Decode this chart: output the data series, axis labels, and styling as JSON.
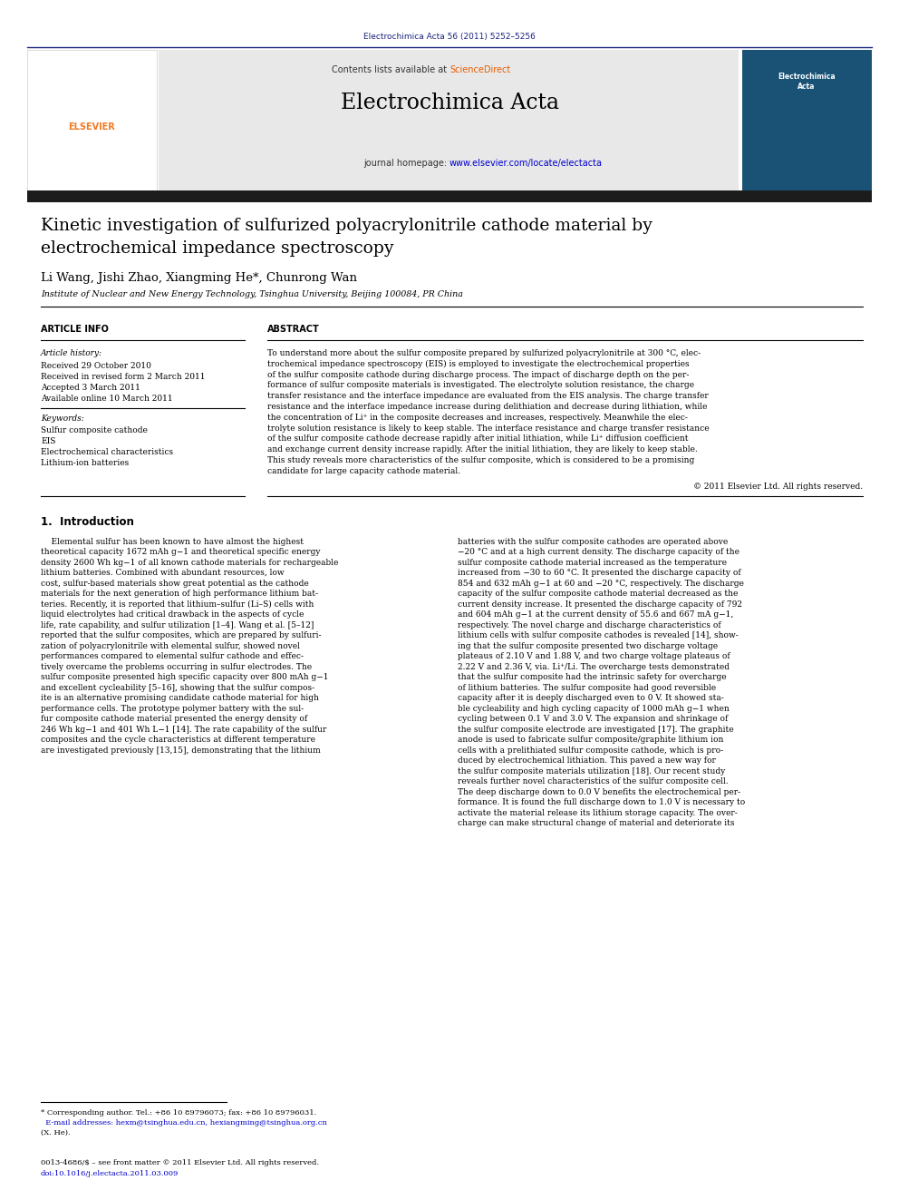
{
  "page_width": 9.92,
  "page_height": 13.23,
  "bg": "#ffffff",
  "top_ref": "Electrochimica Acta 56 (2011) 5252–5256",
  "journal_name": "Electrochimica Acta",
  "contents_prefix": "Contents lists available at ",
  "sciencedirect": "ScienceDirect",
  "homepage_prefix": "journal homepage: ",
  "homepage_url": "www.elsevier.com/locate/electacta",
  "title_line1": "Kinetic investigation of sulfurized polyacrylonitrile cathode material by",
  "title_line2": "electrochemical impedance spectroscopy",
  "authors": "Li Wang, Jishi Zhao, Xiangming He*, Chunrong Wan",
  "affiliation": "Institute of Nuclear and New Energy Technology, Tsinghua University, Beijing 100084, PR China",
  "art_info_hdr": "ARTICLE INFO",
  "abstract_hdr": "ABSTRACT",
  "hist_label": "Article history:",
  "hist_lines": [
    "Received 29 October 2010",
    "Received in revised form 2 March 2011",
    "Accepted 3 March 2011",
    "Available online 10 March 2011"
  ],
  "kw_label": "Keywords:",
  "kw_lines": [
    "Sulfur composite cathode",
    "EIS",
    "Electrochemical characteristics",
    "Lithium-ion batteries"
  ],
  "abstract_lines": [
    "To understand more about the sulfur composite prepared by sulfurized polyacrylonitrile at 300 °C, elec-",
    "trochemical impedance spectroscopy (EIS) is employed to investigate the electrochemical properties",
    "of the sulfur composite cathode during discharge process. The impact of discharge depth on the per-",
    "formance of sulfur composite materials is investigated. The electrolyte solution resistance, the charge",
    "transfer resistance and the interface impedance are evaluated from the EIS analysis. The charge transfer",
    "resistance and the interface impedance increase during delithiation and decrease during lithiation, while",
    "the concentration of Li⁺ in the composite decreases and increases, respectively. Meanwhile the elec-",
    "trolyte solution resistance is likely to keep stable. The interface resistance and charge transfer resistance",
    "of the sulfur composite cathode decrease rapidly after initial lithiation, while Li⁺ diffusion coefficient",
    "and exchange current density increase rapidly. After the initial lithiation, they are likely to keep stable.",
    "This study reveals more characteristics of the sulfur composite, which is considered to be a promising",
    "candidate for large capacity cathode material."
  ],
  "copyright": "© 2011 Elsevier Ltd. All rights reserved.",
  "sec1_hdr": "1.  Introduction",
  "intro_left_lines": [
    "    Elemental sulfur has been known to have almost the highest",
    "theoretical capacity 1672 mAh g−1 and theoretical specific energy",
    "density 2600 Wh kg−1 of all known cathode materials for rechargeable",
    "lithium batteries. Combined with abundant resources, low",
    "cost, sulfur-based materials show great potential as the cathode",
    "materials for the next generation of high performance lithium bat-",
    "teries. Recently, it is reported that lithium–sulfur (Li–S) cells with",
    "liquid electrolytes had critical drawback in the aspects of cycle",
    "life, rate capability, and sulfur utilization [1–4]. Wang et al. [5–12]",
    "reported that the sulfur composites, which are prepared by sulfuri-",
    "zation of polyacrylonitrile with elemental sulfur, showed novel",
    "performances compared to elemental sulfur cathode and effec-",
    "tively overcame the problems occurring in sulfur electrodes. The",
    "sulfur composite presented high specific capacity over 800 mAh g−1",
    "and excellent cycleability [5–16], showing that the sulfur compos-",
    "ite is an alternative promising candidate cathode material for high",
    "performance cells. The prototype polymer battery with the sul-",
    "fur composite cathode material presented the energy density of",
    "246 Wh kg−1 and 401 Wh L−1 [14]. The rate capability of the sulfur",
    "composites and the cycle characteristics at different temperature",
    "are investigated previously [13,15], demonstrating that the lithium"
  ],
  "intro_right_lines": [
    "batteries with the sulfur composite cathodes are operated above",
    "−20 °C and at a high current density. The discharge capacity of the",
    "sulfur composite cathode material increased as the temperature",
    "increased from −30 to 60 °C. It presented the discharge capacity of",
    "854 and 632 mAh g−1 at 60 and −20 °C, respectively. The discharge",
    "capacity of the sulfur composite cathode material decreased as the",
    "current density increase. It presented the discharge capacity of 792",
    "and 604 mAh g−1 at the current density of 55.6 and 667 mA g−1,",
    "respectively. The novel charge and discharge characteristics of",
    "lithium cells with sulfur composite cathodes is revealed [14], show-",
    "ing that the sulfur composite presented two discharge voltage",
    "plateaus of 2.10 V and 1.88 V, and two charge voltage plateaus of",
    "2.22 V and 2.36 V, via. Li⁺/Li. The overcharge tests demonstrated",
    "that the sulfur composite had the intrinsic safety for overcharge",
    "of lithium batteries. The sulfur composite had good reversible",
    "capacity after it is deeply discharged even to 0 V. It showed sta-",
    "ble cycleability and high cycling capacity of 1000 mAh g−1 when",
    "cycling between 0.1 V and 3.0 V. The expansion and shrinkage of",
    "the sulfur composite electrode are investigated [17]. The graphite",
    "anode is used to fabricate sulfur composite/graphite lithium ion",
    "cells with a prelithiated sulfur composite cathode, which is pro-",
    "duced by electrochemical lithiation. This paved a new way for",
    "the sulfur composite materials utilization [18]. Our recent study",
    "reveals further novel characteristics of the sulfur composite cell.",
    "The deep discharge down to 0.0 V benefits the electrochemical per-",
    "formance. It is found the full discharge down to 1.0 V is necessary to",
    "activate the material release its lithium storage capacity. The over-",
    "charge can make structural change of material and deteriorate its"
  ],
  "footnote1": "* Corresponding author. Tel.: +86 10 89796073; fax: +86 10 89796031.",
  "footnote2": "  E-mail addresses: hexm@tsinghua.edu.cn, hexiangming@tsinghua.org.cn",
  "footnote3": "(X. He).",
  "footer1": "0013-4686/$ – see front matter © 2011 Elsevier Ltd. All rights reserved.",
  "footer2": "doi:10.1016/j.electacta.2011.03.009",
  "blue_dark": "#1a237e",
  "blue_link": "#0000cc",
  "orange_sd": "#e65c00",
  "gray_hdr": "#e8e8e8",
  "dark_bar": "#1c1c1c",
  "elsevier_orange": "#f47920",
  "cover_blue": "#1a5276"
}
